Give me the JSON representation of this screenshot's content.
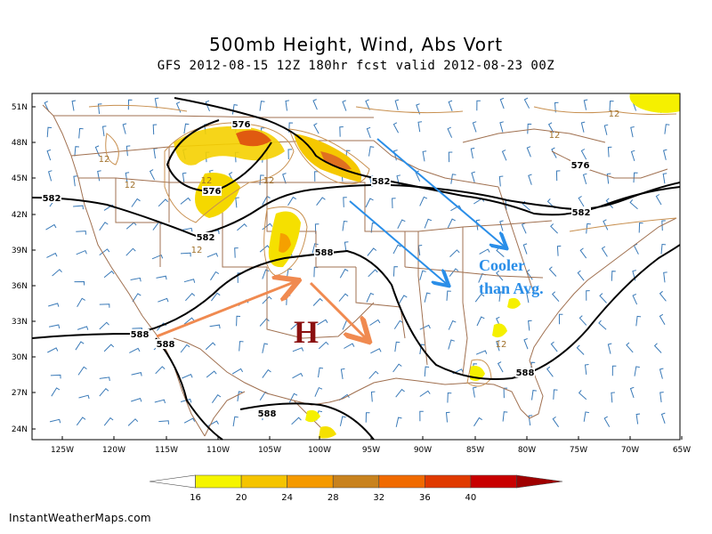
{
  "title": "500mb Height, Wind, Abs Vort",
  "subtitle": "GFS 2012-08-15 12Z 180hr fcst valid 2012-08-23 00Z",
  "credit": "InstantWeatherMaps.com",
  "latitudes": [
    "51N",
    "48N",
    "45N",
    "42N",
    "39N",
    "36N",
    "33N",
    "30N",
    "27N",
    "24N"
  ],
  "longitudes": [
    "125W",
    "120W",
    "115W",
    "110W",
    "105W",
    "100W",
    "95W",
    "90W",
    "85W",
    "80W",
    "75W",
    "70W",
    "65W"
  ],
  "height_contours": [
    {
      "label": "576",
      "color": "#000000"
    },
    {
      "label": "582",
      "color": "#000000"
    },
    {
      "label": "588",
      "color": "#000000"
    }
  ],
  "contour_labels": [
    {
      "text": "576"
    },
    {
      "text": "576"
    },
    {
      "text": "576"
    },
    {
      "text": "582"
    },
    {
      "text": "582"
    },
    {
      "text": "582"
    },
    {
      "text": "582"
    },
    {
      "text": "588"
    },
    {
      "text": "588"
    },
    {
      "text": "588"
    },
    {
      "text": "588"
    },
    {
      "text": "588"
    }
  ],
  "vorticity_labels": [
    {
      "text": "12"
    },
    {
      "text": "12"
    },
    {
      "text": "12"
    },
    {
      "text": "12"
    },
    {
      "text": "12"
    },
    {
      "text": "12"
    },
    {
      "text": "12"
    },
    {
      "text": "12"
    }
  ],
  "annotations": {
    "cooler_line1": "Cooler",
    "cooler_line2": "than Avg.",
    "high": "H",
    "blue_color": "#2a8ee8",
    "orange_color": "#f08a50",
    "high_color": "#8b1010"
  },
  "colorbar": {
    "ticks": [
      "16",
      "20",
      "24",
      "28",
      "32",
      "36",
      "40"
    ],
    "colors": [
      "#ffffff",
      "#f5f500",
      "#f5c400",
      "#f59a00",
      "#c8821e",
      "#f06a00",
      "#e03a00",
      "#c80000",
      "#a00000"
    ]
  }
}
